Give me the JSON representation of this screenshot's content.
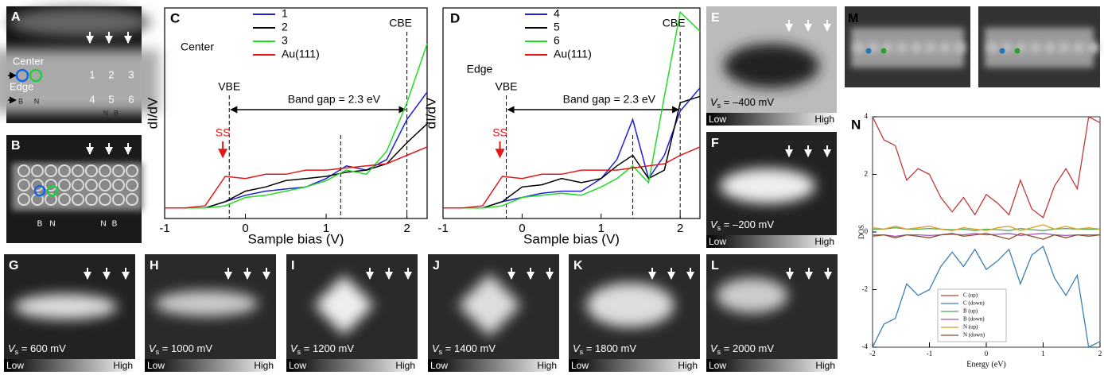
{
  "panels": {
    "A": {
      "letter": "A",
      "center": "Center",
      "edge": "Edge",
      "sites": [
        "1",
        "2",
        "3",
        "4",
        "5",
        "6"
      ],
      "atoms": [
        "B",
        "N",
        "N",
        "B"
      ]
    },
    "B": {
      "letter": "B",
      "atoms": [
        "B",
        "N",
        "N",
        "B"
      ]
    },
    "M": {
      "letter": "M"
    },
    "maps": [
      {
        "letter": "E",
        "v": "V",
        "sub": "s",
        "bias": " = –400 mV",
        "low": "Low",
        "high": "High"
      },
      {
        "letter": "F",
        "v": "V",
        "sub": "s",
        "bias": " = –200 mV",
        "low": "Low",
        "high": "High"
      },
      {
        "letter": "G",
        "v": "V",
        "sub": "s",
        "bias": " = 600 mV",
        "low": "Low",
        "high": "High"
      },
      {
        "letter": "H",
        "v": "V",
        "sub": "s",
        "bias": " = 1000 mV",
        "low": "Low",
        "high": "High"
      },
      {
        "letter": "I",
        "v": "V",
        "sub": "s",
        "bias": " = 1200 mV",
        "low": "Low",
        "high": "High"
      },
      {
        "letter": "J",
        "v": "V",
        "sub": "s",
        "bias": " = 1400 mV",
        "low": "Low",
        "high": "High"
      },
      {
        "letter": "K",
        "v": "V",
        "sub": "s",
        "bias": " = 1800 mV",
        "low": "Low",
        "high": "High"
      },
      {
        "letter": "L",
        "v": "V",
        "sub": "s",
        "bias": " = 2000 mV",
        "low": "Low",
        "high": "High"
      }
    ]
  },
  "chart_data": [
    {
      "type": "line",
      "panel_label": "C",
      "xlabel": "Sample bias (V)",
      "ylabel": "dI/dV",
      "legend_title": "Center",
      "xlim": [
        -1,
        2.25
      ],
      "xticks": [
        -1,
        0,
        1,
        2
      ],
      "ylim": [
        0,
        10
      ],
      "x": [
        -1,
        -0.75,
        -0.5,
        -0.25,
        0,
        0.25,
        0.5,
        0.75,
        1,
        1.25,
        1.5,
        1.75,
        2,
        2.25
      ],
      "series": [
        {
          "name": "1",
          "color": "#1f1fd6",
          "values": [
            0.5,
            0.5,
            0.5,
            0.8,
            1.1,
            1.3,
            1.4,
            1.5,
            1.9,
            2.5,
            2.3,
            2.8,
            4.7,
            6.0
          ]
        },
        {
          "name": "2",
          "color": "#000000",
          "values": [
            0.5,
            0.5,
            0.5,
            0.8,
            1.3,
            1.5,
            1.8,
            1.9,
            2.0,
            2.2,
            2.3,
            2.6,
            3.6,
            4.5
          ]
        },
        {
          "name": "3",
          "color": "#22dd22",
          "values": [
            0.5,
            0.5,
            0.5,
            0.6,
            1.0,
            1.1,
            1.3,
            1.5,
            1.8,
            2.3,
            2.1,
            3.2,
            5.5,
            8.3
          ]
        },
        {
          "name": "Au(111)",
          "color": "#e01818",
          "values": [
            0.5,
            0.5,
            0.6,
            2.0,
            1.9,
            2.1,
            2.1,
            2.3,
            2.3,
            2.4,
            2.5,
            2.6,
            3.0,
            3.4
          ]
        }
      ],
      "vlines": [
        -0.2,
        1.18,
        2.0
      ],
      "vbe_label": "VBE",
      "cbe_label": "CBE",
      "gap_label": "Band gap = 2.3 eV",
      "ss_label": "SS",
      "ss_x": -0.28
    },
    {
      "type": "line",
      "panel_label": "D",
      "xlabel": "Sample bias (V)",
      "ylabel": "dI/dV",
      "legend_title": "Edge",
      "xlim": [
        -1,
        2.25
      ],
      "xticks": [
        -1,
        0,
        1,
        2
      ],
      "ylim": [
        0,
        10
      ],
      "x": [
        -1,
        -0.75,
        -0.5,
        -0.25,
        0,
        0.25,
        0.5,
        0.75,
        1,
        1.2,
        1.4,
        1.6,
        1.8,
        2.0,
        2.25
      ],
      "series": [
        {
          "name": "4",
          "color": "#1f1fd6",
          "values": [
            0.5,
            0.5,
            0.5,
            0.8,
            1.0,
            1.2,
            1.3,
            1.3,
            1.9,
            2.8,
            4.7,
            1.9,
            3.0,
            5.1,
            6.2
          ]
        },
        {
          "name": "5",
          "color": "#000000",
          "values": [
            0.5,
            0.5,
            0.5,
            0.8,
            1.5,
            1.6,
            1.9,
            1.7,
            1.9,
            2.5,
            3.0,
            1.9,
            2.3,
            5.5,
            5.8
          ]
        },
        {
          "name": "6",
          "color": "#22dd22",
          "values": [
            0.5,
            0.5,
            0.5,
            0.6,
            1.0,
            1.1,
            1.2,
            1.1,
            1.5,
            1.9,
            2.5,
            1.7,
            5.8,
            9.8,
            8.9
          ]
        },
        {
          "name": "Au(111)",
          "color": "#e01818",
          "values": [
            0.5,
            0.5,
            0.6,
            2.0,
            1.9,
            2.1,
            2.1,
            2.3,
            2.3,
            2.3,
            2.4,
            2.5,
            2.6,
            3.0,
            3.4
          ]
        }
      ],
      "vlines": [
        -0.2,
        1.4,
        2.0
      ],
      "vbe_label": "VBE",
      "cbe_label": "CBE",
      "gap_label": "Band gap = 2.3 eV",
      "ss_label": "SS",
      "ss_x": -0.28
    },
    {
      "type": "line",
      "panel_label": "N",
      "xlabel": "Energy (eV)",
      "ylabel": "DOS",
      "xlim": [
        -2,
        2
      ],
      "xticks": [
        -2,
        -1,
        0,
        1,
        2
      ],
      "ylim": [
        -4,
        4
      ],
      "yticks": [
        -4,
        -2,
        0,
        2,
        4
      ],
      "x": [
        -2,
        -1.8,
        -1.6,
        -1.4,
        -1.2,
        -1,
        -0.8,
        -0.6,
        -0.4,
        -0.2,
        0,
        0.2,
        0.4,
        0.6,
        0.8,
        1,
        1.2,
        1.4,
        1.6,
        1.8,
        2
      ],
      "series": [
        {
          "name": "C (up)",
          "color": "#c0393b",
          "values": [
            4,
            3.2,
            3.0,
            1.8,
            2.2,
            2.0,
            1.2,
            0.7,
            1.2,
            0.6,
            1.3,
            1.0,
            0.6,
            1.8,
            0.8,
            0.5,
            1.6,
            2.2,
            1.5,
            4,
            3.8
          ]
        },
        {
          "name": "C (down)",
          "color": "#3a7fb5",
          "values": [
            -4,
            -3.2,
            -3.0,
            -1.8,
            -2.2,
            -2.0,
            -1.2,
            -0.7,
            -1.2,
            -0.6,
            -1.3,
            -1.0,
            -0.6,
            -1.8,
            -0.8,
            -0.5,
            -1.6,
            -2.2,
            -1.5,
            -4,
            -3.8
          ]
        },
        {
          "name": "B (up)",
          "color": "#4aa84a",
          "values": [
            0.1,
            0.1,
            0.15,
            0.1,
            0.1,
            0.12,
            0.1,
            0.08,
            0.1,
            0.05,
            0.1,
            0.08,
            0.05,
            0.12,
            0.08,
            0.05,
            0.1,
            0.12,
            0.1,
            0.1,
            0.1
          ]
        },
        {
          "name": "B (down)",
          "color": "#9b59b6",
          "values": [
            -0.1,
            -0.1,
            -0.15,
            -0.1,
            -0.1,
            -0.12,
            -0.1,
            -0.08,
            -0.1,
            -0.05,
            -0.1,
            -0.08,
            -0.05,
            -0.12,
            -0.08,
            -0.05,
            -0.1,
            -0.12,
            -0.1,
            -0.1,
            -0.1
          ]
        },
        {
          "name": "N (up)",
          "color": "#e69a1e",
          "values": [
            0.15,
            0.1,
            0.2,
            0.1,
            0.15,
            0.2,
            0.1,
            0.05,
            0.15,
            0.1,
            0.05,
            0.15,
            0.2,
            0.05,
            0.15,
            0.25,
            0.1,
            0.2,
            0.1,
            0.15,
            0.1
          ]
        },
        {
          "name": "N (down)",
          "color": "#8b4a2b",
          "values": [
            -0.15,
            -0.1,
            -0.2,
            -0.1,
            -0.15,
            -0.2,
            -0.1,
            -0.05,
            -0.15,
            -0.1,
            -0.05,
            -0.15,
            -0.25,
            -0.05,
            -0.15,
            -0.25,
            -0.1,
            -0.2,
            -0.1,
            -0.15,
            -0.1
          ]
        }
      ]
    }
  ]
}
